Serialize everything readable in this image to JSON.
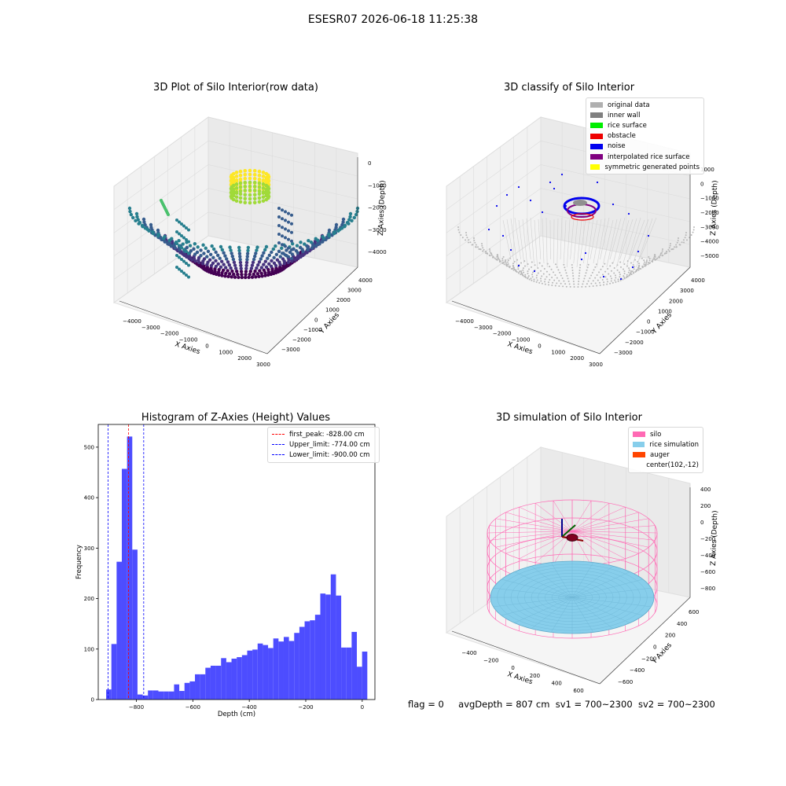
{
  "suptitle": "ESESR07 2026-06-18 11:25:38",
  "footer": {
    "flag": "flag = 0",
    "avg_depth": "avgDepth = 807 cm",
    "sv1": "sv1 = 700~2300",
    "sv2": "sv2 = 700~2300"
  },
  "panel1": {
    "title": "3D Plot of Silo Interior(row data)",
    "x_ticks": [
      "−4000",
      "−3000",
      "−2000",
      "−1000",
      "0",
      "1000",
      "2000",
      "3000"
    ],
    "y_ticks": [
      "−3000",
      "−2000",
      "−1000",
      "0",
      "1000",
      "2000",
      "3000",
      "4000"
    ],
    "z_ticks": [
      "0",
      "−1000",
      "−2000",
      "−3000",
      "−4000"
    ],
    "xlabel": "X Axies",
    "ylabel": "Y Axies",
    "zlabel": "Z Axies (Depth)",
    "colormap": "viridis"
  },
  "panel2": {
    "title": "3D classify of Silo Interior",
    "x_ticks": [
      "−4000",
      "−3000",
      "−2000",
      "−1000",
      "0",
      "1000",
      "2000",
      "3000"
    ],
    "y_ticks": [
      "−3000",
      "−2000",
      "−1000",
      "0",
      "1000",
      "2000",
      "3000",
      "4000"
    ],
    "z_ticks": [
      "1000",
      "0",
      "−1000",
      "−2000",
      "−3000",
      "−4000",
      "−5000"
    ],
    "xlabel": "X Axies",
    "ylabel": "Y Axies",
    "zlabel": "Z Axies (Depth)",
    "legend": [
      {
        "label": "original data",
        "color": "#b0b0b0"
      },
      {
        "label": "inner wall",
        "color": "#808080"
      },
      {
        "label": "rice surface",
        "color": "#00ee00"
      },
      {
        "label": "obstacle",
        "color": "#ee0000"
      },
      {
        "label": "noise",
        "color": "#0000ee"
      },
      {
        "label": "interpolated rice surface",
        "color": "#800080"
      },
      {
        "label": "symmetric generated points",
        "color": "#ffff00"
      }
    ]
  },
  "panel3": {
    "title": "Histogram of Z-Axies (Height) Values",
    "chart_data": {
      "type": "bar",
      "title": "Histogram of Z-Axies (Height) Values",
      "xlabel": "Depth (cm)",
      "ylabel": "Frequency",
      "xlim": [
        -935,
        45
      ],
      "ylim": [
        0,
        545
      ],
      "x_ticks": [
        -800,
        -600,
        -400,
        -200,
        0
      ],
      "x_tick_labels": [
        "−800",
        "−600",
        "−400",
        "−200",
        "0"
      ],
      "y_ticks": [
        0,
        100,
        200,
        300,
        400,
        500
      ],
      "bin_width": 18.5,
      "bin_start": -907,
      "values": [
        20,
        110,
        273,
        457,
        521,
        297,
        10,
        8,
        18,
        18,
        16,
        16,
        16,
        30,
        17,
        33,
        36,
        50,
        50,
        63,
        67,
        67,
        82,
        74,
        81,
        84,
        88,
        97,
        99,
        111,
        108,
        102,
        121,
        115,
        124,
        116,
        132,
        144,
        155,
        157,
        168,
        210,
        208,
        248,
        206,
        103,
        103,
        134,
        65,
        95
      ],
      "bar_color": "#4d4dff",
      "lines": [
        {
          "label": "first_peak: -828.00 cm",
          "x": -828,
          "color": "#ff0000"
        },
        {
          "label": "Upper_limit: -774.00 cm",
          "x": -774,
          "color": "#0000ff"
        },
        {
          "label": "Lower_limit: -900.00 cm",
          "x": -900,
          "color": "#0000ff"
        }
      ],
      "legend_position": "upper right"
    }
  },
  "panel4": {
    "title": "3D simulation of Silo Interior",
    "x_ticks": [
      "−400",
      "−200",
      "0",
      "200",
      "400",
      "600"
    ],
    "y_ticks": [
      "−600",
      "−400",
      "−200",
      "0",
      "200",
      "400",
      "600"
    ],
    "z_ticks": [
      "400",
      "200",
      "0",
      "−200",
      "−400",
      "−600",
      "−800"
    ],
    "xlabel": "X Axies",
    "ylabel": "Y Axies",
    "zlabel": "Z Axies (Depth)",
    "legend": [
      {
        "label": "silo",
        "color": "#ff69b4"
      },
      {
        "label": "rice simulation",
        "color": "#87ceeb"
      },
      {
        "label": "auger",
        "color": "#ff4500"
      },
      {
        "label": "center(102,-12)",
        "color": ""
      }
    ]
  }
}
